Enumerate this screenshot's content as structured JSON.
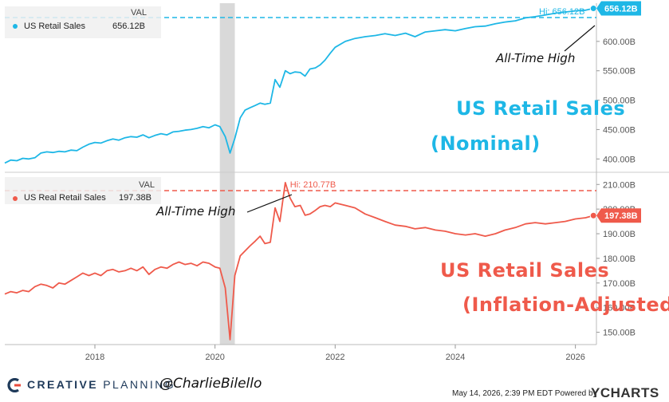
{
  "colors": {
    "nominal": "#1eb7e6",
    "real": "#ef5a4b",
    "recession": "#d9d9d9",
    "axis": "#555555"
  },
  "chart_data": [
    {
      "type": "line",
      "series": [
        {
          "name": "US Retail Sales",
          "last_value_label": "656.12B",
          "x": [
            2016.5,
            2016.6,
            2016.7,
            2016.8,
            2016.9,
            2017.0,
            2017.1,
            2017.2,
            2017.3,
            2017.4,
            2017.5,
            2017.6,
            2017.7,
            2017.8,
            2017.9,
            2018.0,
            2018.1,
            2018.2,
            2018.3,
            2018.4,
            2018.5,
            2018.6,
            2018.7,
            2018.8,
            2018.9,
            2019.0,
            2019.1,
            2019.2,
            2019.3,
            2019.4,
            2019.5,
            2019.6,
            2019.7,
            2019.8,
            2019.9,
            2020.0,
            2020.08,
            2020.17,
            2020.25,
            2020.33,
            2020.42,
            2020.5,
            2020.58,
            2020.67,
            2020.75,
            2020.83,
            2020.92,
            2021.0,
            2021.08,
            2021.17,
            2021.25,
            2021.33,
            2021.42,
            2021.5,
            2021.58,
            2021.67,
            2021.75,
            2021.83,
            2021.92,
            2022.0,
            2022.17,
            2022.33,
            2022.5,
            2022.67,
            2022.83,
            2023.0,
            2023.17,
            2023.33,
            2023.5,
            2023.67,
            2023.83,
            2024.0,
            2024.17,
            2024.33,
            2024.5,
            2024.67,
            2024.83,
            2025.0,
            2025.17,
            2025.33,
            2025.5,
            2025.67,
            2025.83,
            2026.0,
            2026.17,
            2026.3
          ],
          "values": [
            393,
            398,
            397,
            401,
            400,
            402,
            410,
            412,
            411,
            413,
            412,
            415,
            414,
            420,
            425,
            428,
            427,
            431,
            434,
            432,
            436,
            438,
            437,
            441,
            436,
            440,
            443,
            441,
            446,
            447,
            449,
            450,
            452,
            455,
            453,
            458,
            455,
            438,
            410,
            435,
            470,
            483,
            487,
            491,
            495,
            493,
            495,
            535,
            522,
            550,
            545,
            548,
            547,
            541,
            553,
            555,
            560,
            568,
            580,
            590,
            600,
            605,
            608,
            610,
            613,
            610,
            614,
            608,
            616,
            618,
            620,
            618,
            622,
            625,
            626,
            630,
            633,
            635,
            640,
            642,
            645,
            648,
            650,
            652,
            653,
            656.12
          ]
        }
      ],
      "hi_label": "Hi: 656.12B",
      "annotation": "All-Time High",
      "title_lines": [
        "US Retail Sales",
        "(Nominal)"
      ],
      "y_ticks": [
        "400.00B",
        "450.00B",
        "500.00B",
        "550.00B",
        "600.00B"
      ],
      "y_tick_values": [
        400,
        450,
        500,
        550,
        600
      ],
      "ylim": [
        380,
        665
      ],
      "legend_header": "VAL",
      "legend_value": "656.12B"
    },
    {
      "type": "line",
      "series": [
        {
          "name": "US Real Retail Sales",
          "last_value_label": "197.38B",
          "x": [
            2016.5,
            2016.6,
            2016.7,
            2016.8,
            2016.9,
            2017.0,
            2017.1,
            2017.2,
            2017.3,
            2017.4,
            2017.5,
            2017.6,
            2017.7,
            2017.8,
            2017.9,
            2018.0,
            2018.1,
            2018.2,
            2018.3,
            2018.4,
            2018.5,
            2018.6,
            2018.7,
            2018.8,
            2018.9,
            2019.0,
            2019.1,
            2019.2,
            2019.3,
            2019.4,
            2019.5,
            2019.6,
            2019.7,
            2019.8,
            2019.9,
            2020.0,
            2020.08,
            2020.17,
            2020.25,
            2020.33,
            2020.42,
            2020.5,
            2020.58,
            2020.67,
            2020.75,
            2020.83,
            2020.92,
            2021.0,
            2021.08,
            2021.17,
            2021.25,
            2021.33,
            2021.42,
            2021.5,
            2021.58,
            2021.67,
            2021.75,
            2021.83,
            2021.92,
            2022.0,
            2022.17,
            2022.33,
            2022.5,
            2022.67,
            2022.83,
            2023.0,
            2023.17,
            2023.33,
            2023.5,
            2023.67,
            2023.83,
            2024.0,
            2024.17,
            2024.33,
            2024.5,
            2024.67,
            2024.83,
            2025.0,
            2025.17,
            2025.33,
            2025.5,
            2025.67,
            2025.83,
            2026.0,
            2026.17,
            2026.3
          ],
          "values": [
            165.5,
            166.5,
            166.0,
            167.0,
            166.5,
            168.5,
            169.5,
            169.0,
            168.0,
            170.0,
            169.5,
            171.0,
            172.5,
            174.0,
            173.0,
            174.0,
            173.0,
            175.0,
            175.5,
            174.5,
            175.0,
            176.0,
            175.0,
            176.5,
            173.5,
            175.5,
            176.5,
            176.0,
            177.5,
            178.5,
            177.5,
            178.0,
            177.0,
            178.5,
            178.0,
            176.5,
            176.0,
            168.0,
            147.0,
            173.0,
            181.0,
            183.0,
            185.0,
            187.0,
            189.0,
            186.0,
            186.5,
            200.5,
            195.0,
            210.77,
            204.5,
            201.0,
            201.5,
            197.5,
            198.0,
            199.5,
            201.0,
            201.5,
            201.0,
            202.5,
            201.5,
            200.5,
            198.0,
            196.5,
            195.0,
            193.5,
            193.0,
            192.0,
            192.5,
            191.5,
            191.0,
            190.0,
            189.5,
            190.0,
            189.0,
            190.0,
            191.5,
            192.5,
            194.0,
            194.5,
            194.0,
            194.5,
            195.0,
            196.0,
            196.5,
            197.38
          ]
        }
      ],
      "hi_label": "Hi: 210.77B",
      "annotation": "All-Time High",
      "title_lines": [
        "US Retail Sales",
        "(Inflation-Adjusted)"
      ],
      "y_ticks": [
        "150.00B",
        "160.00B",
        "170.00B",
        "180.00B",
        "190.00B",
        "200.00B",
        "210.00B"
      ],
      "y_tick_values": [
        150,
        160,
        170,
        180,
        190,
        200,
        210
      ],
      "ylim": [
        145,
        213
      ],
      "legend_header": "VAL",
      "legend_value": "197.38B"
    }
  ],
  "x_axis": {
    "ticks": [
      "2018",
      "2020",
      "2022",
      "2024",
      "2026"
    ],
    "tick_values": [
      2018,
      2020,
      2022,
      2024,
      2026
    ],
    "xlim": [
      2016.5,
      2026.35
    ],
    "recession": [
      2020.08,
      2020.33
    ]
  },
  "footer": {
    "brand_bold": "CREATIVE",
    "brand_light": "PLANNING",
    "handle": "@CharlieBilello",
    "timestamp": "May 14, 2026, 2:39 PM EDT Powered by",
    "ycharts": "YCHARTS"
  }
}
